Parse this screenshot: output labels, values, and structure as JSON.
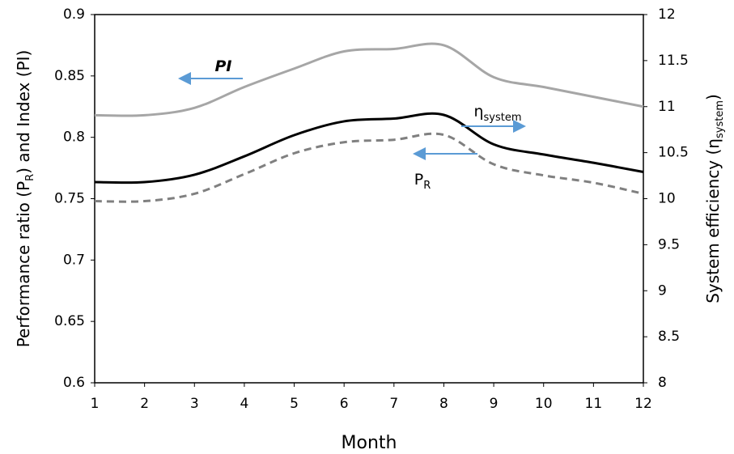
{
  "chart_data": {
    "type": "line",
    "xlabel": "Month",
    "ylabel": [
      "Performance ratio  (P",
      "R",
      ") and Index (PI)"
    ],
    "y2label": [
      "System efficiency  (η",
      "system",
      ")"
    ],
    "x": [
      1,
      2,
      3,
      4,
      5,
      6,
      7,
      8,
      9,
      10,
      11,
      12
    ],
    "xlim": [
      1,
      12
    ],
    "xticks": [
      1,
      2,
      3,
      4,
      5,
      6,
      7,
      8,
      9,
      10,
      11,
      12
    ],
    "ylim": [
      0.6,
      0.9
    ],
    "yticks": [
      0.6,
      0.65,
      0.7,
      0.75,
      0.8,
      0.85,
      0.9
    ],
    "y2lim": [
      8,
      12
    ],
    "y2ticks": [
      8,
      8.5,
      9,
      9.5,
      10,
      10.5,
      11,
      11.5,
      12
    ],
    "series": [
      {
        "color": "#a6a6a6",
        "dash": false,
        "values": [
          0.818,
          0.818,
          0.824,
          0.841,
          0.856,
          0.87,
          0.872,
          0.875,
          0.849,
          0.841,
          0.833,
          0.825
        ]
      },
      {
        "color": "#000000",
        "dash": false,
        "axis": "y2",
        "values": [
          10.18,
          10.18,
          10.26,
          10.46,
          10.69,
          10.84,
          10.87,
          10.91,
          10.59,
          10.48,
          10.39,
          10.29
        ]
      },
      {
        "color": "#808080",
        "dash": true,
        "values": [
          0.748,
          0.748,
          0.754,
          0.77,
          0.787,
          0.796,
          0.798,
          0.802,
          0.778,
          0.769,
          0.763,
          0.754
        ]
      }
    ],
    "annotations": [
      {
        "text": "PI",
        "arrow": "left"
      },
      {
        "text": "η",
        "sub": "system",
        "arrow": "right"
      },
      {
        "text": "P",
        "sub": "R",
        "arrow": "left"
      }
    ],
    "arrow_color": "#5b9bd5"
  }
}
